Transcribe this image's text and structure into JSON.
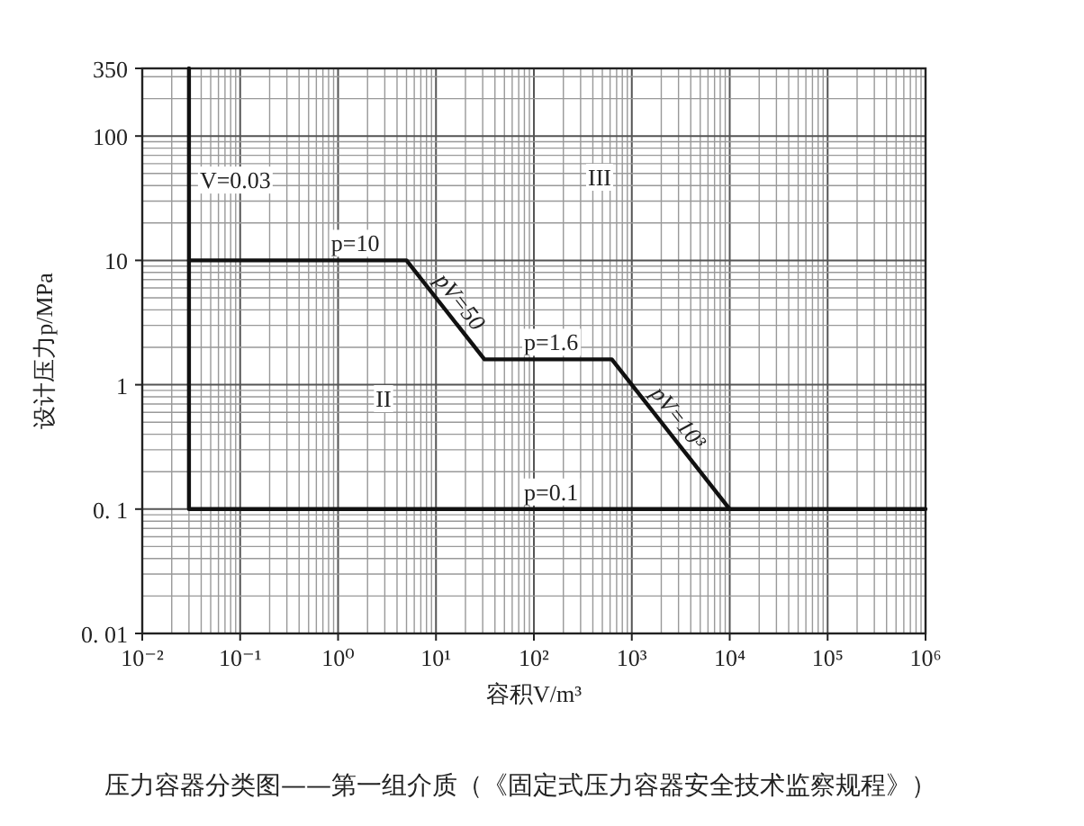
{
  "chart_data": {
    "type": "line",
    "xlabel": "容积V/m³",
    "ylabel": "设计压力p/MPa",
    "log": "xy",
    "grid": true,
    "marker": "none",
    "line_style": "solid",
    "xlim": [
      0.01,
      1000000
    ],
    "ylim": [
      0.01,
      350
    ],
    "xticks": [
      {
        "value": 0.01,
        "label": "10⁻²"
      },
      {
        "value": 0.1,
        "label": "10⁻¹"
      },
      {
        "value": 1,
        "label": "10⁰"
      },
      {
        "value": 10,
        "label": "10¹"
      },
      {
        "value": 100,
        "label": "10²"
      },
      {
        "value": 1000,
        "label": "10³"
      },
      {
        "value": 10000,
        "label": "10⁴"
      },
      {
        "value": 100000,
        "label": "10⁵"
      },
      {
        "value": 1000000,
        "label": "10⁶"
      }
    ],
    "yticks": [
      {
        "value": 0.01,
        "label": "0. 01"
      },
      {
        "value": 0.1,
        "label": "0. 1"
      },
      1,
      10,
      100,
      350
    ],
    "series": [
      {
        "color": "#111111",
        "x": [
          0.03,
          0.03,
          1000000
        ],
        "values": [
          350,
          0.1,
          0.1
        ]
      },
      {
        "color": "#111111",
        "x": [
          0.03,
          5,
          31.25,
          625,
          10000
        ],
        "values": [
          10,
          10,
          1.6,
          1.6,
          0.1
        ]
      }
    ],
    "annotations": [
      {
        "text": "V=0.03",
        "x": 0.03,
        "y": 45
      },
      {
        "text": "p=10",
        "x": 1.5,
        "y": 10
      },
      {
        "text": "pV=50",
        "x": 13,
        "y": 3.85
      },
      {
        "text": "p=1.6",
        "x": 150,
        "y": 1.6
      },
      {
        "text": "pV=10³",
        "x": 2200,
        "y": 0.45
      },
      {
        "text": "p=0.1",
        "x": 150,
        "y": 0.1
      },
      "II",
      "III",
      "压力容器分类图——第一组介质（《固定式压力容器安全技术监察规程》）"
    ]
  }
}
